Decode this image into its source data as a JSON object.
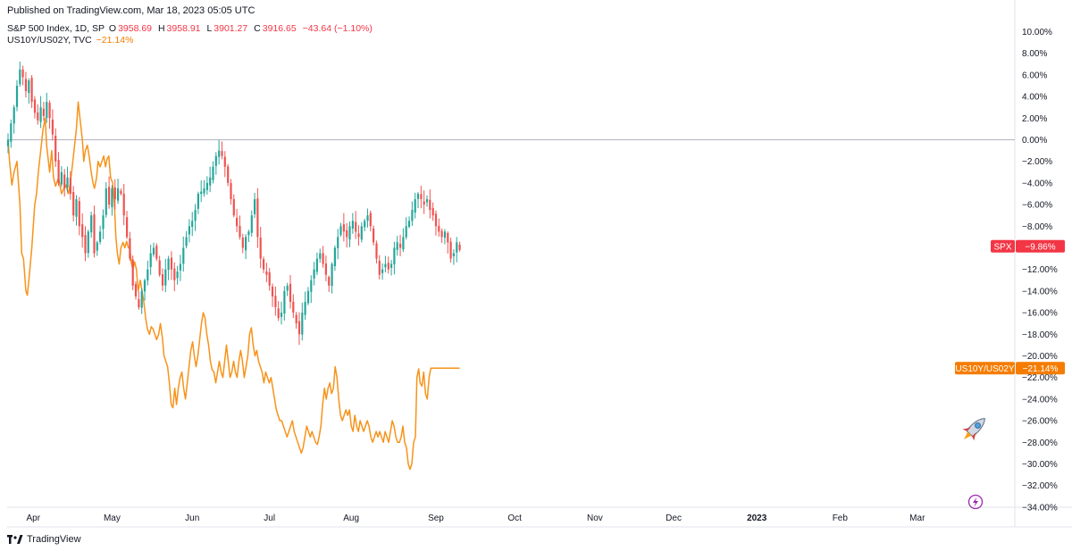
{
  "header": {
    "published": "Published on TradingView.com, Mar 18, 2023 05:05 UTC"
  },
  "legend": {
    "spx": {
      "name": "S&P 500 Index, 1D, SP",
      "o_label": "O",
      "o": "3958.69",
      "h_label": "H",
      "h": "3958.91",
      "l_label": "L",
      "l": "3901.27",
      "c_label": "C",
      "c": "3916.65",
      "change": "−43.64 (−1.10%)"
    },
    "us10y": {
      "name": "US10Y/US02Y, TVC",
      "value": "−21.14%"
    }
  },
  "footer": {
    "brand": "TradingView",
    "logo_icon": "tradingview-logo-icon"
  },
  "icons": {
    "rocket": "rocket-icon",
    "lightning": "lightning-icon"
  },
  "colors": {
    "up": "#26a69a",
    "down": "#ef5350",
    "orange": "#f7931a",
    "tag_red": "#f23645",
    "tag_orange": "#f57c00",
    "zero_line": "#b2b5be",
    "lightning": "#9c27b0"
  },
  "chart_data": {
    "type": "line",
    "title": "",
    "xlabel": "",
    "ylabel": "",
    "ylim": [
      -34,
      10
    ],
    "y_unit": "%",
    "y_ticks": [
      "10.00%",
      "8.00%",
      "6.00%",
      "4.00%",
      "2.00%",
      "0.00%",
      "−2.00%",
      "−4.00%",
      "−6.00%",
      "−8.00%",
      "−10.00%",
      "−12.00%",
      "−14.00%",
      "−16.00%",
      "−18.00%",
      "−20.00%",
      "−22.00%",
      "−24.00%",
      "−26.00%",
      "−28.00%",
      "−30.00%",
      "−32.00%",
      "−34.00%"
    ],
    "y_tick_values": [
      10,
      8,
      6,
      4,
      2,
      0,
      -2,
      -4,
      -6,
      -8,
      -10,
      -12,
      -14,
      -16,
      -18,
      -20,
      -22,
      -24,
      -26,
      -28,
      -30,
      -32,
      -34
    ],
    "x_ticks": [
      {
        "label": "Apr",
        "x": 21.5
      },
      {
        "label": "May",
        "x": 48
      },
      {
        "label": "Jun",
        "x": 75
      },
      {
        "label": "Jul",
        "x": 101
      },
      {
        "label": "Aug",
        "x": 128.5
      },
      {
        "label": "Sep",
        "x": 157
      },
      {
        "label": "Oct",
        "x": 183.5
      },
      {
        "label": "Nov",
        "x": 210.5
      },
      {
        "label": "Dec",
        "x": 237
      },
      {
        "label": "2023",
        "x": 265,
        "bold": true
      },
      {
        "label": "Feb",
        "x": 293
      },
      {
        "label": "Mar",
        "x": 319
      }
    ],
    "x_range": [
      13,
      338
    ],
    "x_unit": "weeks",
    "reference_line": 0,
    "series": [
      {
        "name": "SPX",
        "type": "candlestick",
        "last_label": "−9.86%",
        "last_value": -9.86,
        "closes": [
          [
            13,
            0
          ],
          [
            14,
            1.5
          ],
          [
            15,
            3
          ],
          [
            16,
            5
          ],
          [
            17,
            6.5
          ],
          [
            18,
            5.8
          ],
          [
            19,
            4.5
          ],
          [
            20,
            5.5
          ],
          [
            21,
            3.5
          ],
          [
            22,
            2.5
          ],
          [
            23,
            1.8
          ],
          [
            24,
            3
          ],
          [
            25,
            2.2
          ],
          [
            26,
            3.5
          ],
          [
            27,
            2
          ],
          [
            28,
            0.5
          ],
          [
            29,
            -2
          ],
          [
            30,
            -4
          ],
          [
            31,
            -3
          ],
          [
            32,
            -4.5
          ],
          [
            33,
            -3.5
          ],
          [
            34,
            -5
          ],
          [
            35,
            -7
          ],
          [
            36,
            -5.5
          ],
          [
            37,
            -8
          ],
          [
            38,
            -9
          ],
          [
            39,
            -10.5
          ],
          [
            40,
            -8.5
          ],
          [
            41,
            -7
          ],
          [
            42,
            -10.5
          ],
          [
            43,
            -9.5
          ],
          [
            44,
            -8.5
          ],
          [
            45,
            -7
          ],
          [
            46,
            -4.5
          ],
          [
            47,
            -6
          ],
          [
            48,
            -4.5
          ],
          [
            49,
            -5.5
          ],
          [
            50,
            -4.5
          ],
          [
            51,
            -5
          ],
          [
            52,
            -7
          ],
          [
            53,
            -9
          ],
          [
            54,
            -11
          ],
          [
            55,
            -13.5
          ],
          [
            56,
            -14.5
          ],
          [
            57,
            -15.5
          ],
          [
            58,
            -14
          ],
          [
            59,
            -13
          ],
          [
            60,
            -12
          ],
          [
            61,
            -10.5
          ],
          [
            62,
            -10
          ],
          [
            63,
            -11
          ],
          [
            64,
            -12.5
          ],
          [
            65,
            -13.5
          ],
          [
            66,
            -12
          ],
          [
            67,
            -11
          ],
          [
            68,
            -12
          ],
          [
            69,
            -13
          ],
          [
            70,
            -12.2
          ],
          [
            71,
            -11.5
          ],
          [
            72,
            -10
          ],
          [
            73,
            -9
          ],
          [
            74,
            -8
          ],
          [
            75,
            -7.5
          ],
          [
            76,
            -6.5
          ],
          [
            77,
            -5
          ],
          [
            78,
            -4.8
          ],
          [
            79,
            -4.5
          ],
          [
            80,
            -4
          ],
          [
            81,
            -3.5
          ],
          [
            82,
            -2.5
          ],
          [
            83,
            -1.5
          ],
          [
            84,
            -1
          ],
          [
            85,
            -1.5
          ],
          [
            86,
            -2.5
          ],
          [
            87,
            -4
          ],
          [
            88,
            -5.5
          ],
          [
            89,
            -7
          ],
          [
            90,
            -8
          ],
          [
            91,
            -9
          ],
          [
            92,
            -10
          ],
          [
            93,
            -9
          ],
          [
            94,
            -8.5
          ],
          [
            95,
            -7
          ],
          [
            96,
            -5.5
          ],
          [
            97,
            -9
          ],
          [
            98,
            -11
          ],
          [
            99,
            -12
          ],
          [
            100,
            -12.5
          ],
          [
            101,
            -13.5
          ],
          [
            102,
            -14.5
          ],
          [
            103,
            -15.5
          ],
          [
            104,
            -16.5
          ],
          [
            105,
            -16
          ],
          [
            106,
            -14
          ],
          [
            107,
            -13.5
          ],
          [
            108,
            -15
          ],
          [
            109,
            -16
          ],
          [
            110,
            -17
          ],
          [
            111,
            -18
          ],
          [
            112,
            -16
          ],
          [
            113,
            -15
          ],
          [
            114,
            -14
          ],
          [
            115,
            -13
          ],
          [
            116,
            -12
          ],
          [
            117,
            -11
          ],
          [
            118,
            -10.5
          ],
          [
            119,
            -11.5
          ],
          [
            120,
            -12.5
          ],
          [
            121,
            -13.5
          ],
          [
            122,
            -11.5
          ],
          [
            123,
            -10
          ],
          [
            124,
            -9
          ],
          [
            125,
            -8
          ],
          [
            126,
            -8.5
          ],
          [
            127,
            -9
          ],
          [
            128,
            -8
          ],
          [
            129,
            -7.5
          ],
          [
            130,
            -8.5
          ],
          [
            131,
            -9
          ],
          [
            132,
            -8
          ],
          [
            133,
            -7.5
          ],
          [
            134,
            -7
          ],
          [
            135,
            -8
          ],
          [
            136,
            -9.5
          ],
          [
            137,
            -11
          ],
          [
            138,
            -12.5
          ],
          [
            139,
            -12
          ],
          [
            140,
            -11.5
          ],
          [
            141,
            -12
          ],
          [
            142,
            -11.5
          ],
          [
            143,
            -10
          ],
          [
            144,
            -9.5
          ],
          [
            145,
            -10
          ],
          [
            146,
            -9
          ],
          [
            147,
            -8
          ],
          [
            148,
            -7.5
          ],
          [
            149,
            -6.5
          ],
          [
            150,
            -5.5
          ],
          [
            151,
            -5
          ],
          [
            152,
            -5.5
          ],
          [
            153,
            -6
          ],
          [
            154,
            -5.5
          ],
          [
            155,
            -6.5
          ],
          [
            156,
            -7
          ],
          [
            157,
            -8
          ],
          [
            158,
            -8.5
          ],
          [
            159,
            -9
          ],
          [
            160,
            -8.5
          ],
          [
            161,
            -9.5
          ],
          [
            162,
            -11
          ],
          [
            163,
            -10.5
          ],
          [
            164,
            -9.5
          ],
          [
            165,
            -10.2
          ]
        ],
        "ohlc": [],
        "color_up": "#26a69a",
        "color_down": "#ef5350"
      },
      {
        "name": "US10Y/US02Y",
        "type": "line",
        "last_label": "−21.14%",
        "last_value": -21.14,
        "color": "#f7931a",
        "points": []
      }
    ]
  }
}
